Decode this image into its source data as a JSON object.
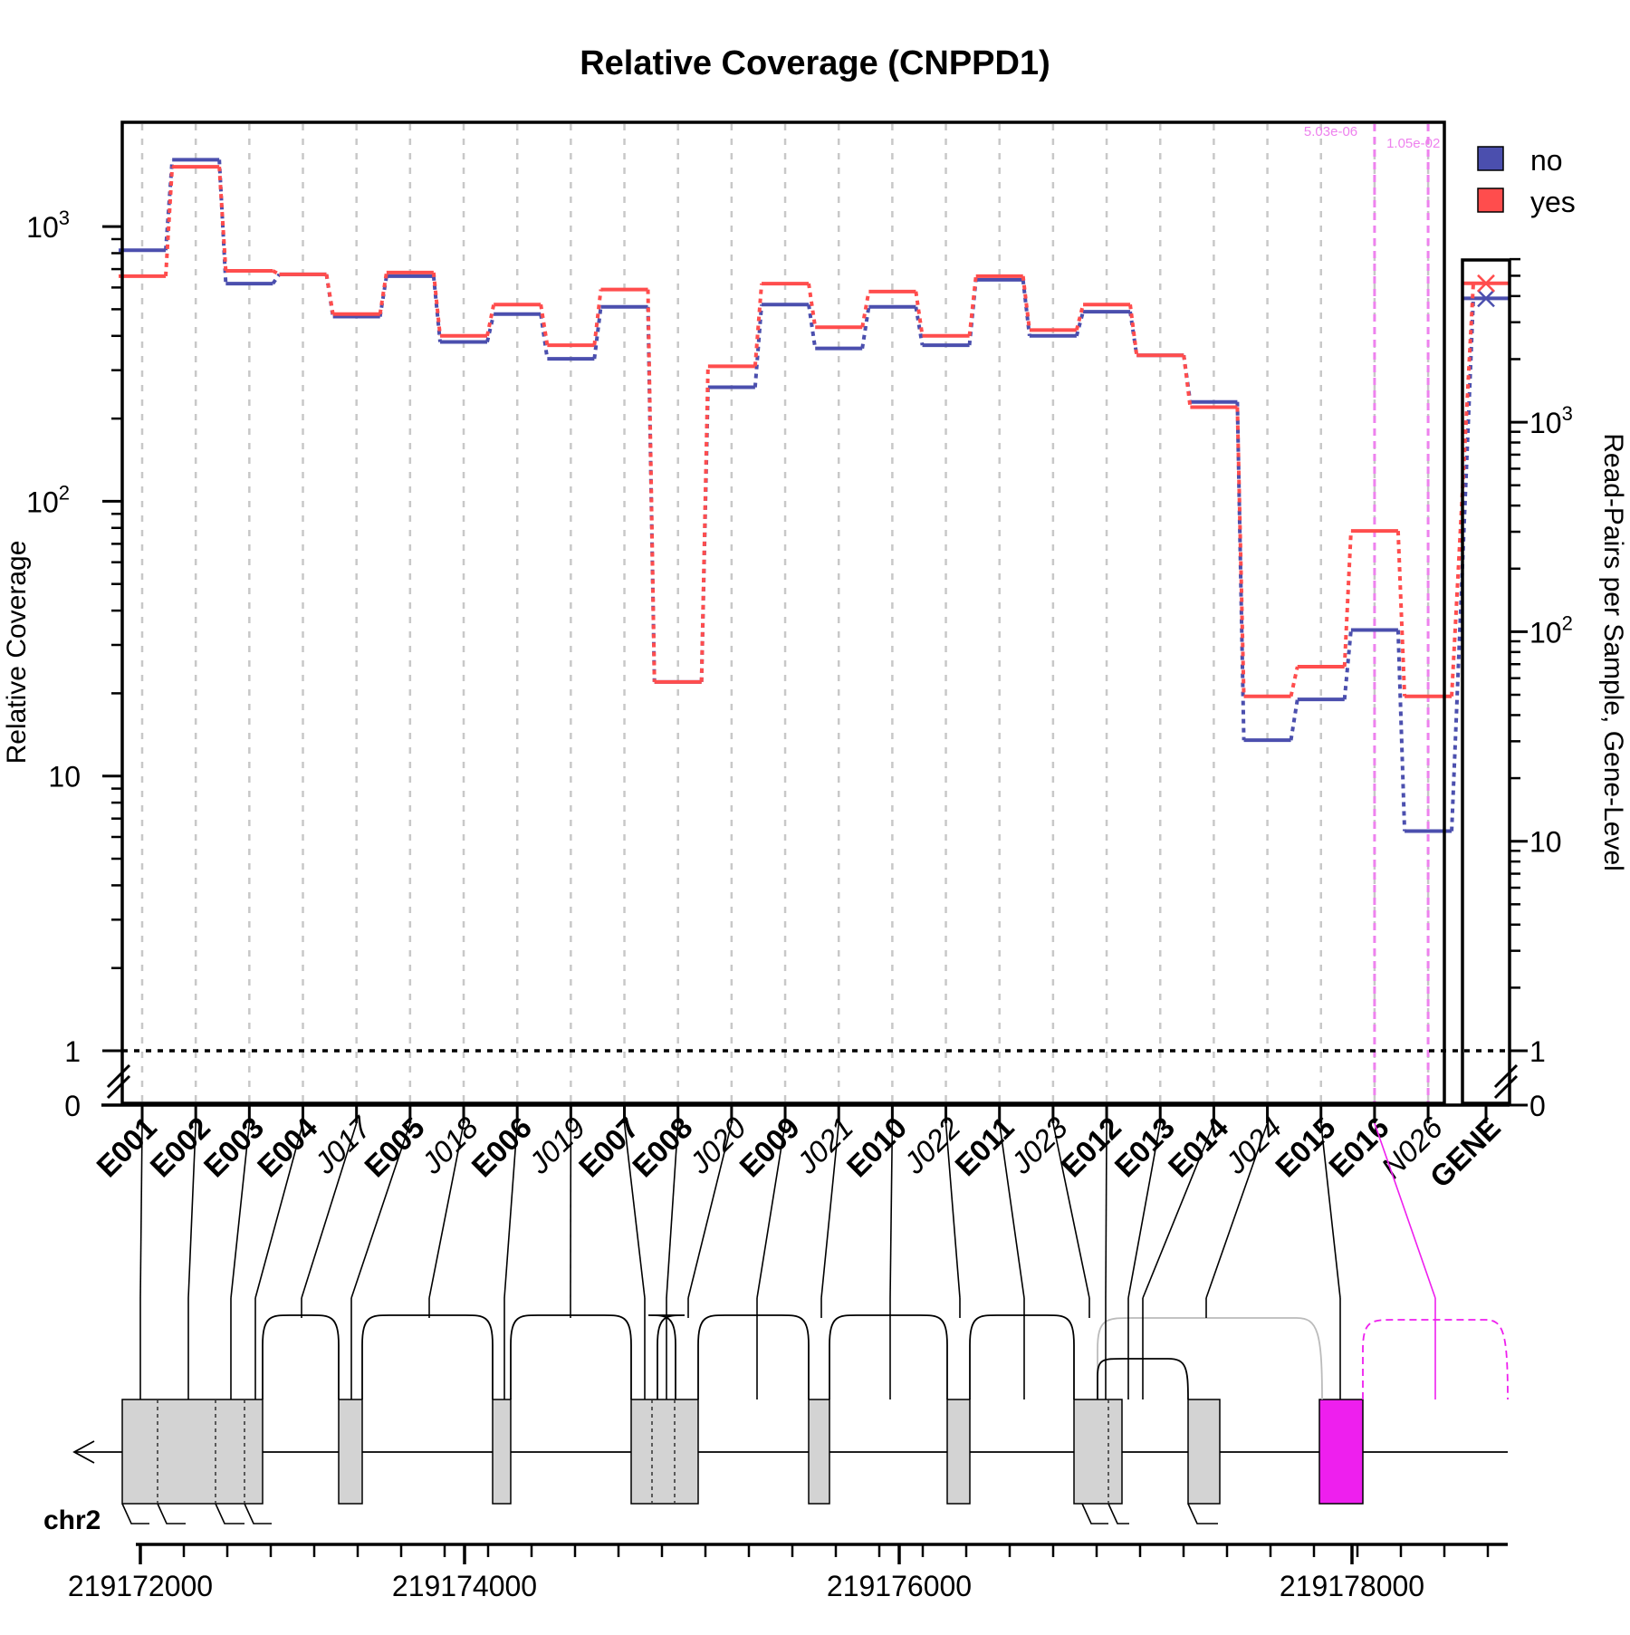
{
  "chart_data": {
    "type": "line",
    "title": "Relative Coverage (CNPPD1)",
    "ylabel": "Relative Coverage",
    "y2label": "Read-Pairs per Sample, Gene-Level",
    "yscale": "log",
    "ylim": [
      0,
      2200
    ],
    "y2lim": [
      0,
      6000
    ],
    "reference_line": 1,
    "y_ticks": [
      {
        "label": "0",
        "sup": ""
      },
      {
        "label": "1",
        "sup": ""
      },
      {
        "label": "10",
        "sup": ""
      },
      {
        "label": "10",
        "sup": "2"
      },
      {
        "label": "10",
        "sup": "3"
      }
    ],
    "y2_ticks": [
      {
        "label": "0",
        "sup": ""
      },
      {
        "label": "1",
        "sup": ""
      },
      {
        "label": "10",
        "sup": ""
      },
      {
        "label": "10",
        "sup": "2"
      },
      {
        "label": "10",
        "sup": "3"
      }
    ],
    "features": [
      {
        "id": "E001",
        "kind": "exon"
      },
      {
        "id": "E002",
        "kind": "exon"
      },
      {
        "id": "E003",
        "kind": "exon"
      },
      {
        "id": "E004",
        "kind": "exon"
      },
      {
        "id": "J017",
        "kind": "junction"
      },
      {
        "id": "E005",
        "kind": "exon"
      },
      {
        "id": "J018",
        "kind": "junction"
      },
      {
        "id": "E006",
        "kind": "exon"
      },
      {
        "id": "J019",
        "kind": "junction"
      },
      {
        "id": "E007",
        "kind": "exon"
      },
      {
        "id": "E008",
        "kind": "exon"
      },
      {
        "id": "J020",
        "kind": "junction"
      },
      {
        "id": "E009",
        "kind": "exon"
      },
      {
        "id": "J021",
        "kind": "junction"
      },
      {
        "id": "E010",
        "kind": "exon"
      },
      {
        "id": "J022",
        "kind": "junction"
      },
      {
        "id": "E011",
        "kind": "exon"
      },
      {
        "id": "J023",
        "kind": "junction"
      },
      {
        "id": "E012",
        "kind": "exon"
      },
      {
        "id": "E013",
        "kind": "exon"
      },
      {
        "id": "E014",
        "kind": "exon"
      },
      {
        "id": "J024",
        "kind": "junction"
      },
      {
        "id": "E015",
        "kind": "exon"
      },
      {
        "id": "E016",
        "kind": "exon"
      },
      {
        "id": "N026",
        "kind": "junction"
      }
    ],
    "gene_label": "GENE",
    "series": [
      {
        "name": "no",
        "color": "#4b4fae",
        "values": [
          820,
          1750,
          620,
          670,
          470,
          660,
          380,
          480,
          330,
          510,
          22,
          260,
          520,
          360,
          510,
          370,
          640,
          400,
          490,
          340,
          230,
          13.5,
          19,
          34,
          6.3
        ],
        "gene_value": 3900
      },
      {
        "name": "yes",
        "color": "#ff4d4d",
        "values": [
          660,
          1650,
          690,
          670,
          480,
          680,
          400,
          520,
          370,
          590,
          22,
          310,
          620,
          430,
          580,
          400,
          660,
          420,
          520,
          340,
          220,
          19.5,
          25,
          78,
          19.5
        ],
        "gene_value": 4600
      }
    ],
    "significance": [
      {
        "feature": "E016",
        "pvalue": "5.03e-06",
        "color": "#ee82ee"
      },
      {
        "feature": "N026",
        "pvalue": "1.05e-02",
        "color": "#ee82ee"
      }
    ],
    "legend_position": "top-right",
    "grid": "vertical dashed",
    "genome": {
      "chrom": "chr2",
      "ticks": [
        "219172000",
        "219174000",
        "219176000",
        "219178000"
      ],
      "strand": "minus"
    }
  }
}
